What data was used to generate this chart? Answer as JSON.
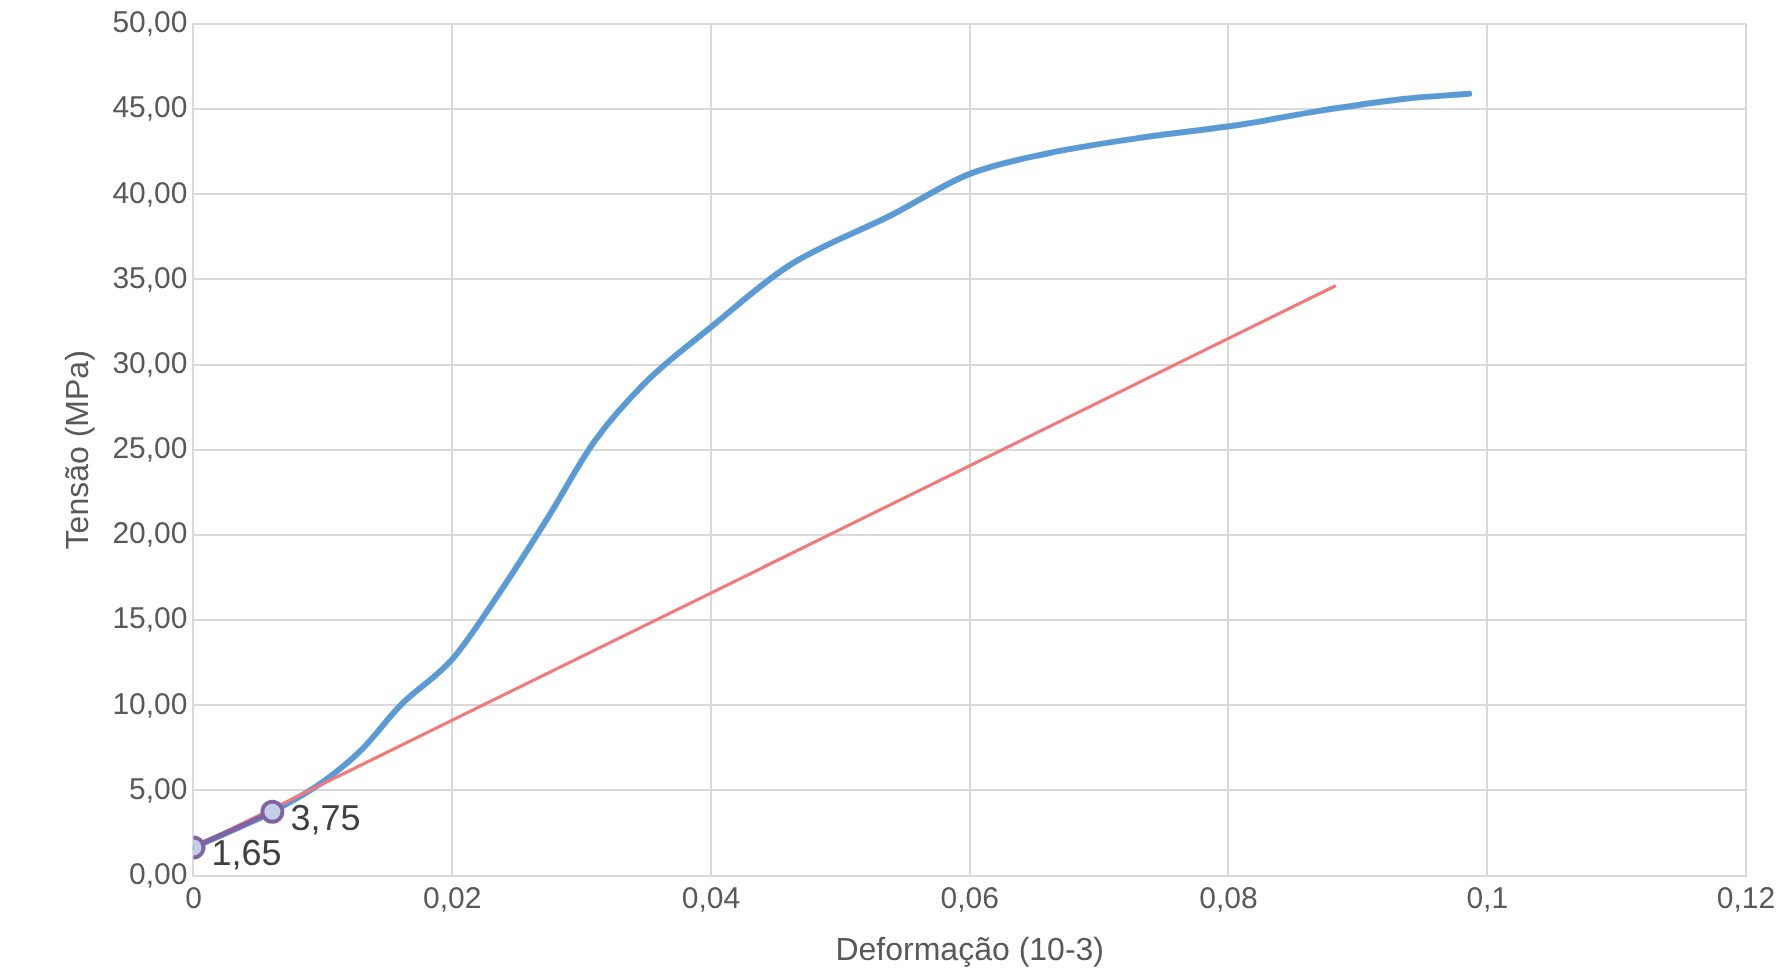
{
  "chart_data": {
    "type": "line",
    "xlabel": "Deformação (10-3)",
    "ylabel": "Tensão (MPa)",
    "xlim": [
      0,
      0.12
    ],
    "xticks": [
      0,
      {
        "value": 0.02,
        "label": "0,02"
      },
      {
        "value": 0.04,
        "label": "0,04"
      },
      {
        "value": 0.06,
        "label": "0,06"
      },
      {
        "value": 0.08,
        "label": "0,08"
      },
      {
        "value": 0.1,
        "label": "0,1"
      },
      {
        "value": 0.12,
        "label": "0,12"
      }
    ],
    "ylim": [
      0,
      50
    ],
    "yticks": [
      {
        "value": 0,
        "label": "0,00"
      },
      {
        "value": 5,
        "label": "5,00"
      },
      {
        "value": 10,
        "label": "10,00"
      },
      {
        "value": 15,
        "label": "15,00"
      },
      {
        "value": 20,
        "label": "20,00"
      },
      {
        "value": 25,
        "label": "25,00"
      },
      {
        "value": 30,
        "label": "30,00"
      },
      {
        "value": 35,
        "label": "35,00"
      },
      {
        "value": 40,
        "label": "40,00"
      },
      {
        "value": 45,
        "label": "45,00"
      },
      {
        "value": 50,
        "label": "50,00"
      }
    ],
    "grid": true,
    "legend": false,
    "series": [
      {
        "color": "#5b9bd5",
        "marker": "none",
        "x": [
          0,
          0.0061,
          0.01,
          0.013,
          0.016,
          0.02,
          0.0233,
          0.0273,
          0.031,
          0.035,
          0.04,
          0.046,
          0.054,
          0.06,
          0.066,
          0.073,
          0.081,
          0.087,
          0.0935,
          0.0986
        ],
        "values": [
          1.65,
          3.75,
          5.5,
          7.4,
          10.0,
          12.7,
          16.2,
          20.9,
          25.5,
          29.0,
          32.2,
          35.8,
          38.8,
          41.2,
          42.4,
          43.3,
          44.1,
          44.9,
          45.6,
          45.9
        ]
      },
      {
        "color": "#f4777a",
        "marker": "none",
        "x": [
          0,
          0.0882
        ],
        "values": [
          1.65,
          34.6
        ]
      },
      {
        "color": "#8064a2",
        "marker": "circle",
        "x": [
          0,
          0.0061
        ],
        "values": [
          1.65,
          3.75
        ],
        "value_labels": [
          "1,65",
          "3,75"
        ]
      }
    ]
  }
}
